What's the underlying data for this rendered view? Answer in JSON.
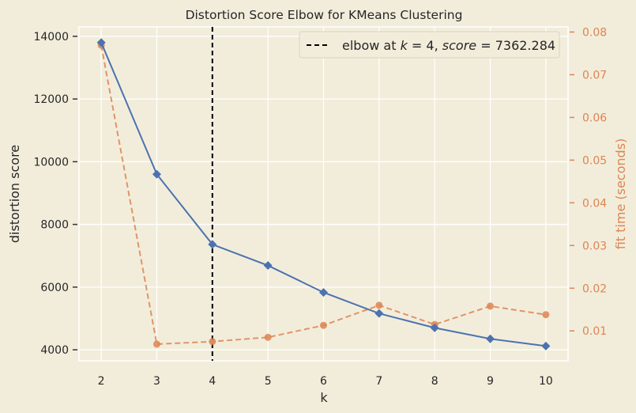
{
  "chart_data": {
    "type": "line",
    "title": "Distortion Score Elbow for KMeans Clustering",
    "xlabel": "k",
    "ylabel": "distortion score",
    "ylabel_right": "fit time (seconds)",
    "x": [
      2,
      3,
      4,
      5,
      6,
      7,
      8,
      9,
      10
    ],
    "xticks": [
      "2",
      "3",
      "4",
      "5",
      "6",
      "7",
      "8",
      "9",
      "10"
    ],
    "yticks": [
      "4000",
      "6000",
      "8000",
      "10000",
      "12000",
      "14000"
    ],
    "yticks_right": [
      "0.01",
      "0.02",
      "0.03",
      "0.04",
      "0.05",
      "0.06",
      "0.07",
      "0.08"
    ],
    "ylim": [
      3650,
      14300
    ],
    "ylim_right": [
      0.003,
      0.0812
    ],
    "grid": true,
    "series": [
      {
        "name": "distortion score",
        "axis": "left",
        "color": "#4c72b0",
        "marker": "diamond",
        "linestyle": "solid",
        "values": [
          13800,
          9600,
          7362.284,
          6690,
          5830,
          5160,
          4700,
          4350,
          4120
        ]
      },
      {
        "name": "fit time (seconds)",
        "axis": "right",
        "color": "#dd8452",
        "marker": "circle",
        "linestyle": "dashed",
        "values": [
          0.0769,
          0.0069,
          0.0075,
          0.0085,
          0.0113,
          0.016,
          0.0115,
          0.0158,
          0.0138
        ]
      }
    ],
    "annotations": [
      {
        "type": "vline",
        "x": 4,
        "color": "#000000",
        "linestyle": "dashed",
        "label": "elbow at k = 4, score = 7362.284"
      }
    ],
    "legend": {
      "position": "upper right",
      "entries": [
        "elbow at k = 4, score = 7362.284"
      ]
    }
  },
  "legend": {
    "prefix": "elbow at ",
    "k_var": "k",
    "k_eq": " = 4, ",
    "score_var": "score",
    "score_eq": " = 7362.284"
  }
}
